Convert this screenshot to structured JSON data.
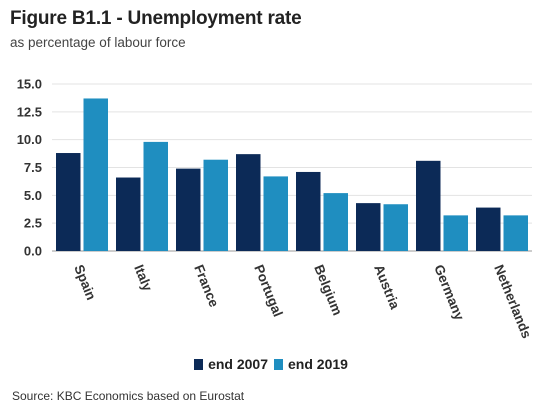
{
  "header": {
    "title": "Figure B1.1 - Unemployment rate",
    "subtitle": "as percentage of labour force"
  },
  "footer": {
    "source": "Source: KBC Economics based on Eurostat"
  },
  "colors": {
    "end_2007": "#0c2a57",
    "end_2019": "#1f8ec0",
    "grid": "#e3e3e3"
  },
  "chart_data": {
    "type": "bar",
    "title": "Figure B1.1 - Unemployment rate",
    "subtitle": "as percentage of labour force",
    "xlabel": "",
    "ylabel": "",
    "categories": [
      "Spain",
      "Italy",
      "France",
      "Portugal",
      "Belgium",
      "Austria",
      "Germany",
      "Netherlands"
    ],
    "series": [
      {
        "name": "end 2007",
        "values": [
          8.8,
          6.6,
          7.4,
          8.7,
          7.1,
          4.3,
          8.1,
          3.9
        ]
      },
      {
        "name": "end 2019",
        "values": [
          13.7,
          9.8,
          8.2,
          6.7,
          5.2,
          4.2,
          3.2,
          3.2
        ]
      }
    ],
    "ylim": [
      0,
      15
    ],
    "yticks": [
      "0.0",
      "2.5",
      "5.0",
      "7.5",
      "10.0",
      "12.5",
      "15.0"
    ],
    "grid": true,
    "legend_position": "bottom"
  }
}
